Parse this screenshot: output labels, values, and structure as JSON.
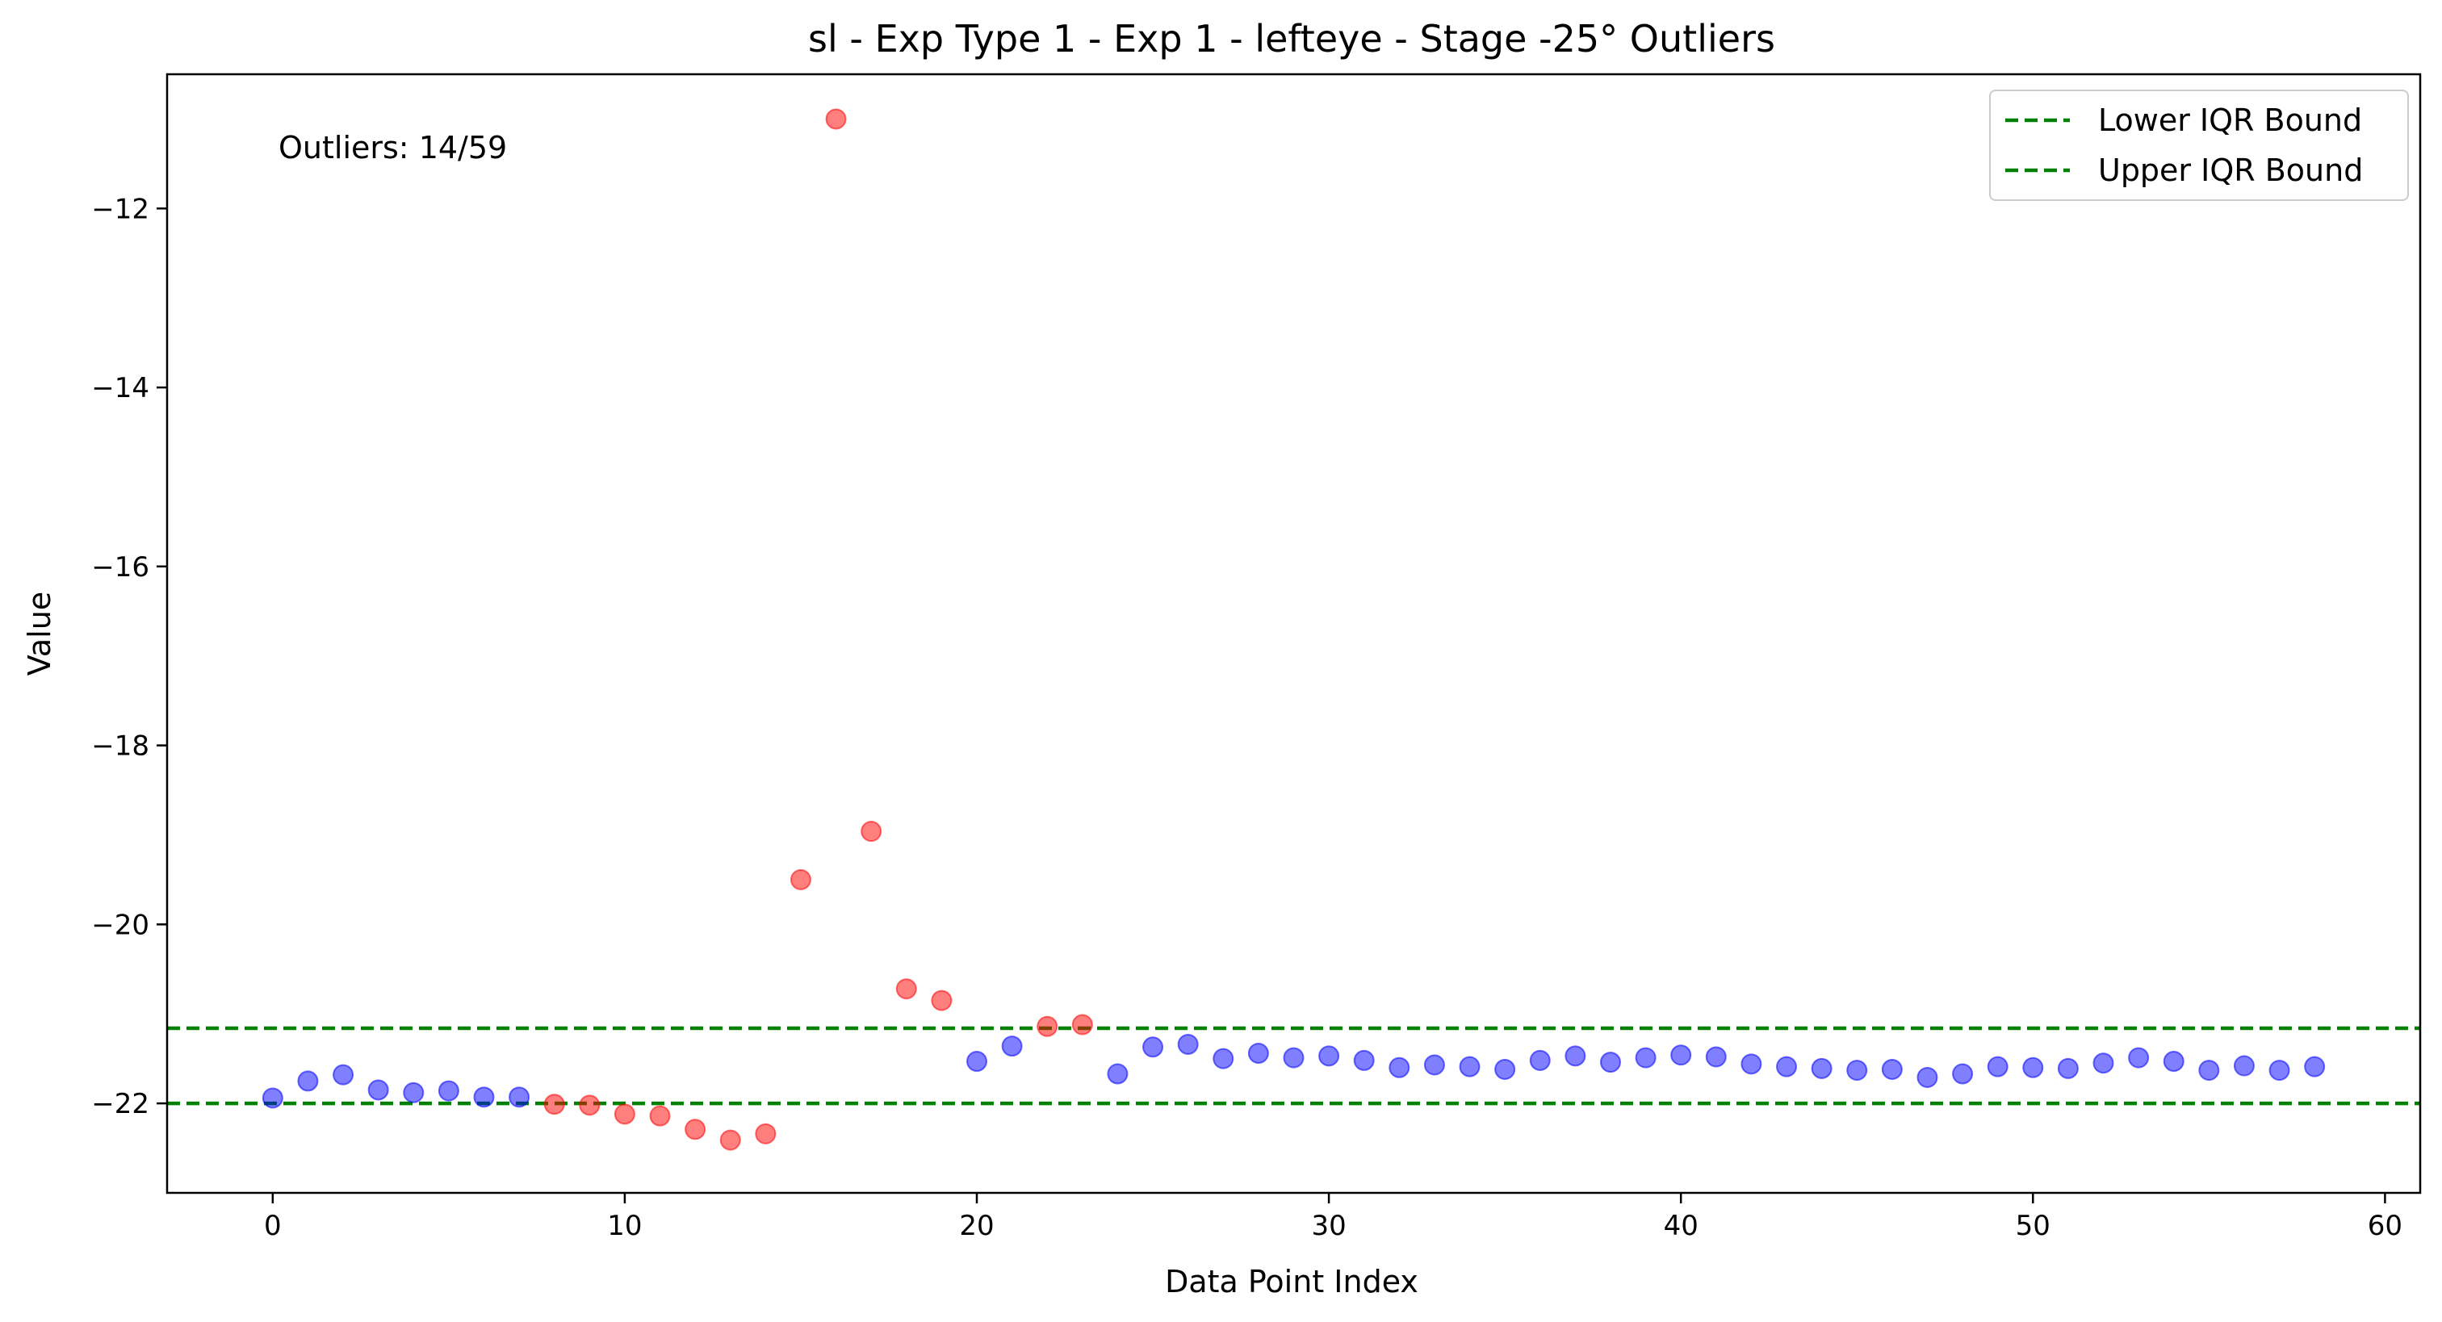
{
  "chart_data": {
    "type": "scatter",
    "title": "sl - Exp Type 1 - Exp 1 - lefteye - Stage -25° Outliers",
    "xlabel": "Data Point Index",
    "ylabel": "Value",
    "xlim": [
      -3,
      61
    ],
    "ylim": [
      -23.0,
      -10.5
    ],
    "xticks": [
      0,
      10,
      20,
      30,
      40,
      50,
      60
    ],
    "yticks": [
      -22,
      -20,
      -18,
      -16,
      -14,
      -12
    ],
    "xtick_labels": [
      "0",
      "10",
      "20",
      "30",
      "40",
      "50",
      "60"
    ],
    "ytick_labels": [
      "−22",
      "−20",
      "−18",
      "−16",
      "−14",
      "−12"
    ],
    "annotation": "Outliers: 14/59",
    "legend_placement": "top-right",
    "grid": false,
    "lines": [
      {
        "name": "Lower IQR Bound",
        "y": -22.0,
        "color": "#008000",
        "style": "dashed"
      },
      {
        "name": "Upper IQR Bound",
        "y": -21.16,
        "color": "#008000",
        "style": "dashed"
      }
    ],
    "normal_color": "#0000ff",
    "outlier_color": "#ff0000",
    "points": [
      {
        "x": 0,
        "y": -21.94,
        "outlier": false
      },
      {
        "x": 1,
        "y": -21.75,
        "outlier": false
      },
      {
        "x": 2,
        "y": -21.68,
        "outlier": false
      },
      {
        "x": 3,
        "y": -21.85,
        "outlier": false
      },
      {
        "x": 4,
        "y": -21.88,
        "outlier": false
      },
      {
        "x": 5,
        "y": -21.86,
        "outlier": false
      },
      {
        "x": 6,
        "y": -21.93,
        "outlier": false
      },
      {
        "x": 7,
        "y": -21.93,
        "outlier": false
      },
      {
        "x": 8,
        "y": -22.01,
        "outlier": true
      },
      {
        "x": 9,
        "y": -22.02,
        "outlier": true
      },
      {
        "x": 10,
        "y": -22.12,
        "outlier": true
      },
      {
        "x": 11,
        "y": -22.14,
        "outlier": true
      },
      {
        "x": 12,
        "y": -22.29,
        "outlier": true
      },
      {
        "x": 13,
        "y": -22.41,
        "outlier": true
      },
      {
        "x": 14,
        "y": -22.34,
        "outlier": true
      },
      {
        "x": 15,
        "y": -19.5,
        "outlier": true
      },
      {
        "x": 16,
        "y": -11.0,
        "outlier": true
      },
      {
        "x": 17,
        "y": -18.96,
        "outlier": true
      },
      {
        "x": 18,
        "y": -20.72,
        "outlier": true
      },
      {
        "x": 19,
        "y": -20.85,
        "outlier": true
      },
      {
        "x": 20,
        "y": -21.53,
        "outlier": false
      },
      {
        "x": 21,
        "y": -21.36,
        "outlier": false
      },
      {
        "x": 22,
        "y": -21.14,
        "outlier": true
      },
      {
        "x": 23,
        "y": -21.12,
        "outlier": true
      },
      {
        "x": 24,
        "y": -21.67,
        "outlier": false
      },
      {
        "x": 25,
        "y": -21.37,
        "outlier": false
      },
      {
        "x": 26,
        "y": -21.34,
        "outlier": false
      },
      {
        "x": 27,
        "y": -21.5,
        "outlier": false
      },
      {
        "x": 28,
        "y": -21.44,
        "outlier": false
      },
      {
        "x": 29,
        "y": -21.49,
        "outlier": false
      },
      {
        "x": 30,
        "y": -21.47,
        "outlier": false
      },
      {
        "x": 31,
        "y": -21.52,
        "outlier": false
      },
      {
        "x": 32,
        "y": -21.6,
        "outlier": false
      },
      {
        "x": 33,
        "y": -21.57,
        "outlier": false
      },
      {
        "x": 34,
        "y": -21.59,
        "outlier": false
      },
      {
        "x": 35,
        "y": -21.62,
        "outlier": false
      },
      {
        "x": 36,
        "y": -21.52,
        "outlier": false
      },
      {
        "x": 37,
        "y": -21.47,
        "outlier": false
      },
      {
        "x": 38,
        "y": -21.54,
        "outlier": false
      },
      {
        "x": 39,
        "y": -21.49,
        "outlier": false
      },
      {
        "x": 40,
        "y": -21.46,
        "outlier": false
      },
      {
        "x": 41,
        "y": -21.48,
        "outlier": false
      },
      {
        "x": 42,
        "y": -21.56,
        "outlier": false
      },
      {
        "x": 43,
        "y": -21.59,
        "outlier": false
      },
      {
        "x": 44,
        "y": -21.61,
        "outlier": false
      },
      {
        "x": 45,
        "y": -21.63,
        "outlier": false
      },
      {
        "x": 46,
        "y": -21.62,
        "outlier": false
      },
      {
        "x": 47,
        "y": -21.71,
        "outlier": false
      },
      {
        "x": 48,
        "y": -21.67,
        "outlier": false
      },
      {
        "x": 49,
        "y": -21.59,
        "outlier": false
      },
      {
        "x": 50,
        "y": -21.6,
        "outlier": false
      },
      {
        "x": 51,
        "y": -21.61,
        "outlier": false
      },
      {
        "x": 52,
        "y": -21.55,
        "outlier": false
      },
      {
        "x": 53,
        "y": -21.49,
        "outlier": false
      },
      {
        "x": 54,
        "y": -21.53,
        "outlier": false
      },
      {
        "x": 55,
        "y": -21.63,
        "outlier": false
      },
      {
        "x": 56,
        "y": -21.58,
        "outlier": false
      },
      {
        "x": 57,
        "y": -21.63,
        "outlier": false
      },
      {
        "x": 58,
        "y": -21.59,
        "outlier": false
      }
    ]
  }
}
